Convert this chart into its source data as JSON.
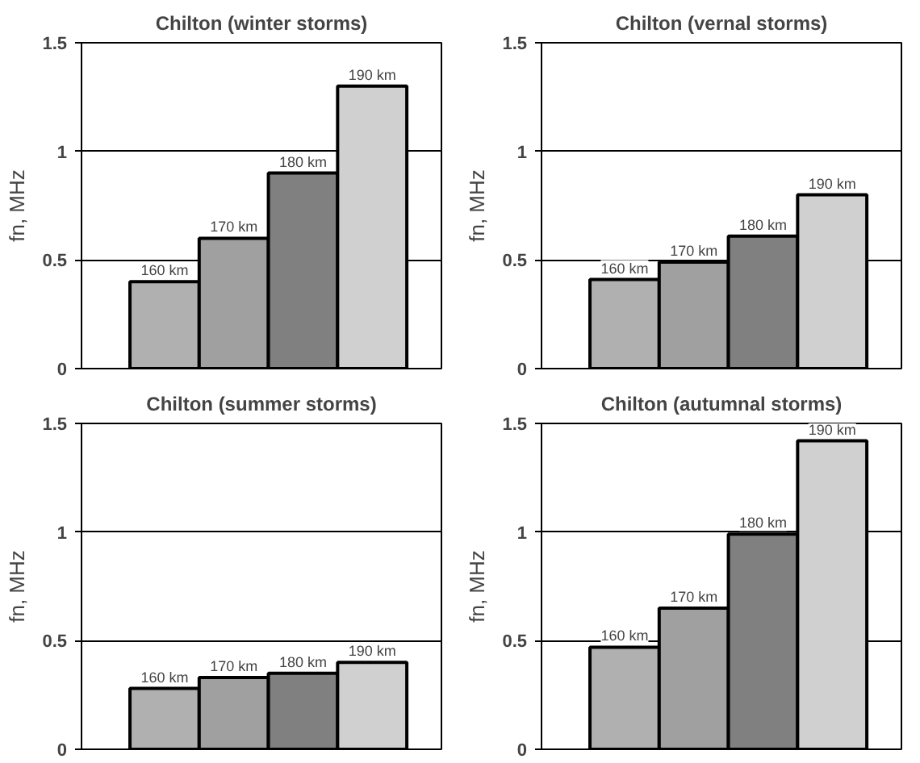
{
  "chart_data": [
    {
      "type": "bar",
      "title": "Chilton (winter storms)",
      "ylabel": "fn, MHz",
      "categories": [
        "160 km",
        "170 km",
        "180 km",
        "190 km"
      ],
      "values": [
        0.4,
        0.6,
        0.9,
        1.3
      ],
      "colors": [
        "#b0b0b0",
        "#a0a0a0",
        "#808080",
        "#d0d0d0"
      ],
      "ylim": [
        0,
        1.5
      ],
      "yticks": [
        0,
        0.5,
        1,
        1.5
      ],
      "grid": "y",
      "tick_labels": "y"
    },
    {
      "type": "bar",
      "title": "Chilton (vernal storms)",
      "ylabel": "fn, MHz",
      "categories": [
        "160 km",
        "170 km",
        "180 km",
        "190 km"
      ],
      "values": [
        0.41,
        0.49,
        0.61,
        0.8
      ],
      "colors": [
        "#b0b0b0",
        "#a0a0a0",
        "#808080",
        "#d0d0d0"
      ],
      "ylim": [
        0,
        1.5
      ],
      "yticks": [
        0,
        0.5,
        1,
        1.5
      ],
      "grid": "y",
      "tick_labels": "y"
    },
    {
      "type": "bar",
      "title": "Chilton (summer storms)",
      "ylabel": "fn, MHz",
      "categories": [
        "160 km",
        "170 km",
        "180 km",
        "190 km"
      ],
      "values": [
        0.28,
        0.33,
        0.35,
        0.4
      ],
      "colors": [
        "#b0b0b0",
        "#a0a0a0",
        "#808080",
        "#d0d0d0"
      ],
      "ylim": [
        0,
        1.5
      ],
      "yticks": [
        0,
        0.5,
        1,
        1.5
      ],
      "grid": "y",
      "tick_labels": "y"
    },
    {
      "type": "bar",
      "title": "Chilton (autumnal storms)",
      "ylabel": "fn, MHz",
      "categories": [
        "160 km",
        "170 km",
        "180 km",
        "190 km"
      ],
      "values": [
        0.47,
        0.65,
        0.99,
        1.42
      ],
      "colors": [
        "#b0b0b0",
        "#a0a0a0",
        "#808080",
        "#d0d0d0"
      ],
      "ylim": [
        0,
        1.5
      ],
      "yticks": [
        0,
        0.5,
        1,
        1.5
      ],
      "grid": "y",
      "tick_labels": "y"
    }
  ]
}
